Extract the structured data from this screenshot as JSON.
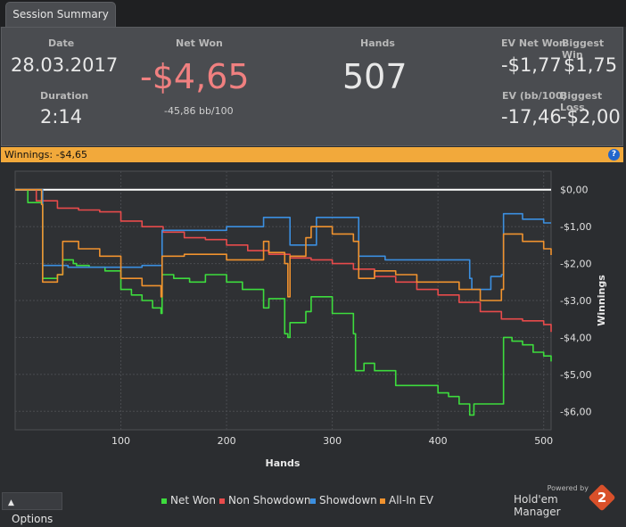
{
  "tab": {
    "label": "Session Summary"
  },
  "summary": {
    "date_label": "Date",
    "date": "28.03.2017",
    "duration_label": "Duration",
    "duration": "2:14",
    "net_won_label": "Net Won",
    "net_won": "-$4,65",
    "net_won_bb": "-45,86 bb/100",
    "hands_label": "Hands",
    "hands": "507",
    "ev_net_won_label": "EV Net Won",
    "ev_net_won": "-$1,77",
    "biggest_win_label": "Biggest Win",
    "biggest_win": "$1,75",
    "ev_bb_label": "EV (bb/100)",
    "ev_bb": "-17,46",
    "biggest_loss_label": "Biggest Loss",
    "biggest_loss": "-$2,00"
  },
  "winnings_bar": {
    "label": "Winnings:",
    "value": "-$4,65",
    "help": "?"
  },
  "options": {
    "label": "Options",
    "icon": "chevron-up-icon"
  },
  "brand": {
    "powered_by": "Powered by",
    "name": "Hold'em Manager",
    "badge": "2"
  },
  "colors": {
    "net_won": "#3ddc3d",
    "non_showdown": "#e84b4b",
    "showdown": "#3b8fe0",
    "all_in_ev": "#f0922e",
    "winnings_bar": "#f2a93b",
    "negative": "#f08080"
  },
  "chart_data": {
    "type": "line",
    "xlabel": "Hands",
    "ylabel": "Winnings",
    "xlim": [
      0,
      507
    ],
    "ylim": [
      -6.5,
      0.5
    ],
    "x_ticks": [
      "100",
      "200",
      "300",
      "400",
      "500"
    ],
    "x_tick_values": [
      100,
      200,
      300,
      400,
      500
    ],
    "y_ticks": [
      "$0,00",
      "-$1,00",
      "-$2,00",
      "-$3,00",
      "-$4,00",
      "-$5,00",
      "-$6,00"
    ],
    "y_tick_values": [
      0,
      -1,
      -2,
      -3,
      -4,
      -5,
      -6
    ],
    "grid": true,
    "legend": "bottom-center",
    "series": [
      {
        "name": "Net Won",
        "color": "#3ddc3d",
        "x": [
          0,
          12,
          25,
          26,
          40,
          45,
          55,
          58,
          70,
          85,
          100,
          110,
          120,
          130,
          138,
          139,
          150,
          165,
          180,
          200,
          215,
          235,
          240,
          255,
          258,
          260,
          275,
          280,
          300,
          320,
          322,
          330,
          340,
          360,
          380,
          400,
          410,
          420,
          430,
          434,
          440,
          460,
          462,
          470,
          480,
          490,
          500,
          507
        ],
        "y": [
          0,
          -0.35,
          -0.4,
          -2.4,
          -2.3,
          -1.9,
          -2.0,
          -2.05,
          -2.1,
          -2.2,
          -2.7,
          -2.85,
          -3.0,
          -3.2,
          -3.35,
          -2.3,
          -2.4,
          -2.5,
          -2.3,
          -2.5,
          -2.7,
          -3.2,
          -2.95,
          -3.9,
          -4.0,
          -3.6,
          -3.3,
          -2.9,
          -3.35,
          -3.9,
          -4.9,
          -4.7,
          -4.9,
          -5.3,
          -5.3,
          -5.5,
          -5.6,
          -5.8,
          -6.1,
          -5.8,
          -5.8,
          -5.8,
          -4.0,
          -4.1,
          -4.2,
          -4.4,
          -4.5,
          -4.65
        ]
      },
      {
        "name": "Non Showdown",
        "color": "#e84b4b",
        "x": [
          0,
          20,
          40,
          60,
          80,
          100,
          120,
          140,
          160,
          180,
          200,
          220,
          240,
          260,
          280,
          300,
          320,
          340,
          360,
          380,
          400,
          420,
          440,
          460,
          480,
          500,
          507
        ],
        "y": [
          0,
          -0.3,
          -0.5,
          -0.55,
          -0.6,
          -0.85,
          -1.0,
          -1.15,
          -1.3,
          -1.35,
          -1.5,
          -1.65,
          -1.75,
          -1.85,
          -1.9,
          -2.0,
          -2.15,
          -2.35,
          -2.5,
          -2.7,
          -2.85,
          -3.05,
          -3.3,
          -3.5,
          -3.55,
          -3.65,
          -3.85
        ]
      },
      {
        "name": "Showdown",
        "color": "#3b8fe0",
        "x": [
          0,
          25,
          26,
          50,
          80,
          120,
          138,
          139,
          170,
          200,
          235,
          255,
          260,
          275,
          285,
          320,
          325,
          340,
          350,
          400,
          430,
          432,
          450,
          460,
          462,
          480,
          500,
          507
        ],
        "y": [
          0,
          0,
          -2.05,
          -2.1,
          -2.1,
          -2.05,
          -2.05,
          -1.1,
          -1.1,
          -1.0,
          -0.75,
          -0.75,
          -1.5,
          -1.5,
          -0.75,
          -0.75,
          -1.8,
          -1.8,
          -1.9,
          -1.9,
          -2.4,
          -2.7,
          -2.35,
          -2.3,
          -0.65,
          -0.8,
          -0.9,
          -0.9
        ]
      },
      {
        "name": "All-In EV",
        "color": "#f0922e",
        "x": [
          0,
          25,
          26,
          40,
          45,
          60,
          80,
          100,
          120,
          138,
          139,
          160,
          200,
          235,
          240,
          255,
          258,
          260,
          275,
          280,
          300,
          320,
          325,
          340,
          360,
          380,
          400,
          420,
          440,
          460,
          462,
          480,
          500,
          507
        ],
        "y": [
          0,
          -0.4,
          -2.5,
          -2.3,
          -1.4,
          -1.6,
          -1.8,
          -2.4,
          -2.6,
          -2.9,
          -1.8,
          -1.75,
          -1.9,
          -1.4,
          -1.7,
          -2.0,
          -2.9,
          -1.8,
          -1.3,
          -1.0,
          -1.2,
          -1.4,
          -2.4,
          -2.2,
          -2.3,
          -2.5,
          -2.5,
          -2.7,
          -3.0,
          -2.7,
          -1.2,
          -1.4,
          -1.6,
          -1.77
        ]
      }
    ]
  }
}
